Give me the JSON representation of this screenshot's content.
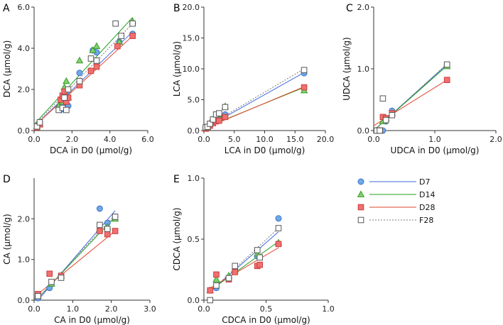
{
  "chart_data": [
    {
      "panel": "A",
      "type": "scatter",
      "xlabel": "DCA in D0 (μmol/g)",
      "ylabel": "DCA (μmol/g)",
      "xlim": [
        0,
        6
      ],
      "ylim": [
        0,
        6
      ],
      "xticks": [
        0,
        2,
        4,
        6
      ],
      "yticks": [
        0,
        2,
        4,
        6
      ],
      "xtick_labels": [
        "0.0",
        "2.0",
        "4.0",
        "6.0"
      ],
      "ytick_labels": [
        "0.0",
        "2.0",
        "4.0",
        "6.0"
      ],
      "series": [
        {
          "name": "D7",
          "points": [
            [
              0.15,
              0.2
            ],
            [
              0.3,
              0.35
            ],
            [
              1.4,
              1.0
            ],
            [
              1.5,
              1.3
            ],
            [
              1.6,
              1.5
            ],
            [
              1.7,
              1.8
            ],
            [
              1.8,
              1.2
            ],
            [
              2.4,
              2.8
            ],
            [
              3.1,
              3.9
            ],
            [
              3.3,
              3.8
            ],
            [
              4.5,
              4.3
            ],
            [
              5.2,
              4.7
            ]
          ],
          "fit": [
            [
              0,
              0.2
            ],
            [
              5.2,
              4.8
            ]
          ]
        },
        {
          "name": "D14",
          "points": [
            [
              0.15,
              0.2
            ],
            [
              0.3,
              0.3
            ],
            [
              1.3,
              1.2
            ],
            [
              1.5,
              1.4
            ],
            [
              1.6,
              2.1
            ],
            [
              1.7,
              2.4
            ],
            [
              1.8,
              1.6
            ],
            [
              2.4,
              3.4
            ],
            [
              3.1,
              3.9
            ],
            [
              3.3,
              4.1
            ],
            [
              4.5,
              4.3
            ],
            [
              5.2,
              5.3
            ]
          ],
          "fit": [
            [
              0,
              0.3
            ],
            [
              5.2,
              5.5
            ]
          ]
        },
        {
          "name": "D28",
          "points": [
            [
              0.15,
              0.15
            ],
            [
              0.3,
              0.3
            ],
            [
              1.4,
              1.5
            ],
            [
              1.5,
              1.7
            ],
            [
              1.6,
              1.9
            ],
            [
              1.7,
              1.4
            ],
            [
              1.8,
              1.6
            ],
            [
              2.4,
              2.2
            ],
            [
              3.0,
              2.9
            ],
            [
              3.3,
              3.1
            ],
            [
              4.4,
              4.1
            ],
            [
              5.2,
              4.6
            ]
          ],
          "fit": [
            [
              0,
              0.2
            ],
            [
              5.2,
              4.6
            ]
          ]
        },
        {
          "name": "F28",
          "points": [
            [
              0.15,
              0.2
            ],
            [
              0.3,
              0.4
            ],
            [
              1.3,
              1.0
            ],
            [
              1.5,
              1.1
            ],
            [
              1.6,
              1.6
            ],
            [
              1.7,
              1.0
            ],
            [
              1.8,
              2.0
            ],
            [
              2.4,
              2.4
            ],
            [
              3.0,
              3.5
            ],
            [
              3.3,
              3.4
            ],
            [
              4.3,
              5.2
            ],
            [
              4.6,
              4.6
            ],
            [
              5.2,
              5.2
            ]
          ],
          "fit": [
            [
              0,
              0.25
            ],
            [
              5.2,
              5.2
            ]
          ]
        }
      ]
    },
    {
      "panel": "B",
      "type": "scatter",
      "xlabel": "LCA in D0 (μmol/g)",
      "ylabel": "LCA (μmol/g)",
      "xlim": [
        0,
        20
      ],
      "ylim": [
        0,
        20
      ],
      "xticks": [
        0,
        5,
        10,
        15,
        20
      ],
      "yticks": [
        0,
        5,
        10,
        15,
        20
      ],
      "xtick_labels": [
        "0.0",
        "5.0",
        "10.0",
        "15.0",
        "20.0"
      ],
      "ytick_labels": [
        "0.0",
        "5.0",
        "10.0",
        "15.0",
        "20.0"
      ],
      "series": [
        {
          "name": "D7",
          "points": [
            [
              0.3,
              0.4
            ],
            [
              0.6,
              0.5
            ],
            [
              1.0,
              1.0
            ],
            [
              1.5,
              1.6
            ],
            [
              2.0,
              2.0
            ],
            [
              2.5,
              2.4
            ],
            [
              3.5,
              2.6
            ],
            [
              16.5,
              9.3
            ]
          ],
          "fit": [
            [
              0,
              0.3
            ],
            [
              16.5,
              9.4
            ]
          ]
        },
        {
          "name": "D14",
          "points": [
            [
              0.3,
              0.4
            ],
            [
              0.6,
              0.6
            ],
            [
              1.0,
              1.2
            ],
            [
              1.5,
              1.5
            ],
            [
              2.0,
              2.2
            ],
            [
              2.5,
              2.6
            ],
            [
              3.5,
              3.9
            ],
            [
              16.5,
              6.5
            ]
          ],
          "fit": [
            [
              0,
              0.4
            ],
            [
              16.5,
              7.0
            ]
          ]
        },
        {
          "name": "D28",
          "points": [
            [
              0.3,
              0.3
            ],
            [
              0.6,
              0.5
            ],
            [
              1.0,
              0.8
            ],
            [
              1.5,
              1.2
            ],
            [
              2.0,
              1.5
            ],
            [
              2.5,
              1.6
            ],
            [
              3.5,
              2.2
            ],
            [
              16.5,
              7.0
            ]
          ],
          "fit": [
            [
              0,
              0.3
            ],
            [
              16.5,
              7.1
            ]
          ]
        },
        {
          "name": "F28",
          "points": [
            [
              0.3,
              0.5
            ],
            [
              0.6,
              0.6
            ],
            [
              1.0,
              1.1
            ],
            [
              1.5,
              1.8
            ],
            [
              2.0,
              2.6
            ],
            [
              2.5,
              2.8
            ],
            [
              3.5,
              3.8
            ],
            [
              16.5,
              9.8
            ]
          ],
          "fit": [
            [
              0,
              0.4
            ],
            [
              16.5,
              10.0
            ]
          ]
        }
      ]
    },
    {
      "panel": "C",
      "type": "scatter",
      "xlabel": "UDCA in D0 (μmol/g)",
      "ylabel": "UDCA (μmol/g)",
      "xlim": [
        0,
        2
      ],
      "ylim": [
        0,
        2
      ],
      "xticks": [
        0,
        1,
        2
      ],
      "yticks": [
        0,
        1,
        2
      ],
      "xtick_labels": [
        "0.0",
        "1.0",
        "2.0"
      ],
      "ytick_labels": [
        "0.0",
        "1.0",
        "2.0"
      ],
      "series": [
        {
          "name": "D7",
          "points": [
            [
              0.05,
              0.0
            ],
            [
              0.1,
              0.0
            ],
            [
              0.15,
              0.0
            ],
            [
              0.2,
              0.15
            ],
            [
              0.3,
              0.32
            ],
            [
              1.2,
              1.06
            ]
          ],
          "fit": [
            [
              0,
              0.0
            ],
            [
              1.2,
              1.07
            ]
          ]
        },
        {
          "name": "D14",
          "points": [
            [
              0.05,
              0.0
            ],
            [
              0.1,
              0.0
            ],
            [
              0.15,
              0.15
            ],
            [
              0.2,
              0.2
            ],
            [
              0.3,
              0.28
            ],
            [
              1.2,
              1.04
            ]
          ],
          "fit": [
            [
              0,
              0.0
            ],
            [
              1.2,
              1.05
            ]
          ]
        },
        {
          "name": "D28",
          "points": [
            [
              0.05,
              0.0
            ],
            [
              0.1,
              0.0
            ],
            [
              0.15,
              0.22
            ],
            [
              0.2,
              0.2
            ],
            [
              0.3,
              0.28
            ],
            [
              1.2,
              0.82
            ]
          ],
          "fit": [
            [
              0,
              0.08
            ],
            [
              1.2,
              0.82
            ]
          ]
        },
        {
          "name": "F28",
          "points": [
            [
              0.05,
              0.0
            ],
            [
              0.1,
              0.0
            ],
            [
              0.15,
              0.52
            ],
            [
              0.2,
              0.17
            ],
            [
              0.3,
              0.25
            ],
            [
              1.2,
              1.07
            ]
          ],
          "fit": [
            [
              0,
              0.0
            ],
            [
              1.2,
              1.08
            ]
          ]
        }
      ]
    },
    {
      "panel": "D",
      "type": "scatter",
      "xlabel": "CA in D0 (μmol/g)",
      "ylabel": "CA (μmol/g)",
      "xlim": [
        0,
        3
      ],
      "ylim": [
        0,
        3
      ],
      "xticks": [
        0,
        1,
        2,
        3
      ],
      "yticks": [
        0,
        1,
        2
      ],
      "xtick_labels": [
        "0.0",
        "1.0",
        "2.0",
        "3.0"
      ],
      "ytick_labels": [
        "0.0",
        "1.0",
        "2.0"
      ],
      "series": [
        {
          "name": "D7",
          "points": [
            [
              0.1,
              0.05
            ],
            [
              0.4,
              0.3
            ],
            [
              0.7,
              0.6
            ],
            [
              1.7,
              2.25
            ],
            [
              1.9,
              1.9
            ],
            [
              2.1,
              2.05
            ]
          ],
          "fit": [
            [
              0.1,
              0.0
            ],
            [
              2.1,
              2.2
            ]
          ]
        },
        {
          "name": "D14",
          "points": [
            [
              0.1,
              0.1
            ],
            [
              0.45,
              0.4
            ],
            [
              0.7,
              0.6
            ],
            [
              1.7,
              1.75
            ],
            [
              1.9,
              1.8
            ],
            [
              2.1,
              2.0
            ]
          ],
          "fit": [
            [
              0.1,
              0.05
            ],
            [
              2.1,
              2.05
            ]
          ]
        },
        {
          "name": "D28",
          "points": [
            [
              0.1,
              0.15
            ],
            [
              0.4,
              0.65
            ],
            [
              0.7,
              0.6
            ],
            [
              1.7,
              1.7
            ],
            [
              1.9,
              1.62
            ],
            [
              2.1,
              1.7
            ]
          ],
          "fit": [
            [
              0.1,
              0.15
            ],
            [
              2.1,
              1.7
            ]
          ]
        },
        {
          "name": "F28",
          "points": [
            [
              0.1,
              0.1
            ],
            [
              0.45,
              0.45
            ],
            [
              0.7,
              0.55
            ],
            [
              1.7,
              1.85
            ],
            [
              1.9,
              1.75
            ],
            [
              2.1,
              2.05
            ]
          ],
          "fit": [
            [
              0.1,
              0.05
            ],
            [
              2.1,
              2.1
            ]
          ]
        }
      ]
    },
    {
      "panel": "E",
      "type": "scatter",
      "xlabel": "CDCA in D0 (μmol/g)",
      "ylabel": "CDCA (μmol/g)",
      "xlim": [
        0,
        1
      ],
      "ylim": [
        0,
        1
      ],
      "xticks": [
        0,
        0.5,
        1
      ],
      "yticks": [
        0,
        0.5,
        1
      ],
      "xtick_labels": [
        "0.0",
        "0.5",
        "1.0"
      ],
      "ytick_labels": [
        "0.0",
        "0.5",
        "1.0"
      ],
      "series": [
        {
          "name": "D7",
          "points": [
            [
              0.05,
              0.08
            ],
            [
              0.1,
              0.1
            ],
            [
              0.2,
              0.18
            ],
            [
              0.25,
              0.25
            ],
            [
              0.43,
              0.36
            ],
            [
              0.6,
              0.67
            ]
          ],
          "fit": [
            [
              0.05,
              0.07
            ],
            [
              0.6,
              0.56
            ]
          ]
        },
        {
          "name": "D14",
          "points": [
            [
              0.05,
              0.08
            ],
            [
              0.1,
              0.17
            ],
            [
              0.2,
              0.2
            ],
            [
              0.25,
              0.25
            ],
            [
              0.43,
              0.38
            ],
            [
              0.6,
              0.47
            ]
          ],
          "fit": [
            [
              0.05,
              0.08
            ],
            [
              0.6,
              0.48
            ]
          ]
        },
        {
          "name": "D28",
          "points": [
            [
              0.05,
              0.08
            ],
            [
              0.1,
              0.21
            ],
            [
              0.2,
              0.17
            ],
            [
              0.25,
              0.23
            ],
            [
              0.43,
              0.28
            ],
            [
              0.45,
              0.29
            ],
            [
              0.6,
              0.46
            ]
          ],
          "fit": [
            [
              0.05,
              0.1
            ],
            [
              0.6,
              0.43
            ]
          ]
        },
        {
          "name": "F28",
          "points": [
            [
              0.05,
              0.0
            ],
            [
              0.1,
              0.12
            ],
            [
              0.2,
              0.18
            ],
            [
              0.25,
              0.28
            ],
            [
              0.43,
              0.41
            ],
            [
              0.45,
              0.35
            ],
            [
              0.6,
              0.59
            ]
          ],
          "fit": [
            [
              0.05,
              0.07
            ],
            [
              0.6,
              0.59
            ]
          ]
        }
      ]
    }
  ],
  "legend": [
    {
      "name": "D7",
      "marker": "circle",
      "fill": "#6fa8e8",
      "stroke": "#3f74c9",
      "line": "#4169e1",
      "dash": ""
    },
    {
      "name": "D14",
      "marker": "triangle",
      "fill": "#7bd46a",
      "stroke": "#3f9a2f",
      "line": "#22a022",
      "dash": ""
    },
    {
      "name": "D28",
      "marker": "square",
      "fill": "#f07070",
      "stroke": "#cc3d3d",
      "line": "#e2452d",
      "dash": ""
    },
    {
      "name": "F28",
      "marker": "square-open",
      "fill": "#ffffff",
      "stroke": "#555555",
      "line": "#777777",
      "dash": "2,2"
    }
  ]
}
